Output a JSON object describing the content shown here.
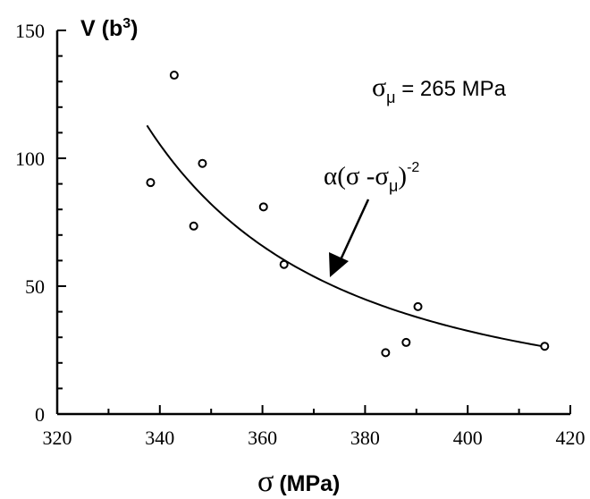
{
  "chart_data": {
    "type": "scatter",
    "xlabel_symbol": "σ",
    "xlabel_units": "(MPa)",
    "ylabel": "V (b",
    "ylabel_sup": "3",
    "ylabel_end": ")",
    "xlim": [
      320,
      420
    ],
    "ylim": [
      0,
      150
    ],
    "xticks": [
      320,
      340,
      360,
      380,
      400,
      420
    ],
    "yticks": [
      0,
      50,
      100,
      150
    ],
    "grid": false,
    "points": [
      {
        "x": 338.2,
        "y": 90.5
      },
      {
        "x": 342.8,
        "y": 132.5
      },
      {
        "x": 346.6,
        "y": 73.5
      },
      {
        "x": 348.3,
        "y": 98.0
      },
      {
        "x": 360.2,
        "y": 81.0
      },
      {
        "x": 364.2,
        "y": 58.5
      },
      {
        "x": 384.0,
        "y": 24.0
      },
      {
        "x": 388.0,
        "y": 28.0
      },
      {
        "x": 390.3,
        "y": 42.0
      },
      {
        "x": 415.0,
        "y": 26.5
      }
    ],
    "fit_curve": {
      "formula": "α(σ - σμ)^-2",
      "alpha": 593000,
      "sigma_mu": 265,
      "x_range": [
        337.5,
        415
      ]
    },
    "annotations": {
      "sigma_mu_text": {
        "symbol": "σ",
        "sub": "μ",
        "rest": " = 265 MPa"
      },
      "fit_label": {
        "alpha": "α(σ -σ",
        "sub": "μ",
        "close": ")",
        "exp": "-2"
      }
    }
  }
}
